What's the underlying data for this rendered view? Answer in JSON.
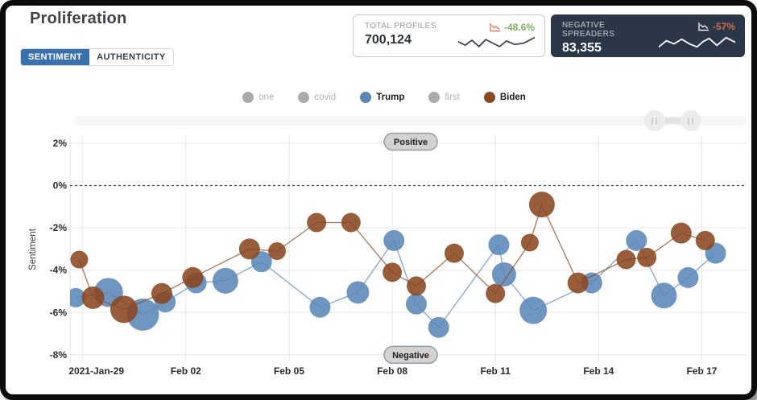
{
  "header": {
    "title": "Proliferation",
    "tabs": [
      {
        "label": "SENTIMENT",
        "active": true
      },
      {
        "label": "AUTHENTICITY",
        "active": false
      }
    ]
  },
  "stat_cards": [
    {
      "label": "TOTAL PROFILES",
      "value": "700,124",
      "change": "-48.6%",
      "change_color": "#7db360",
      "icon": "trend-down-icon",
      "icon_color": "#e07a5e",
      "theme": "light",
      "sparkline_color": "#3d4557",
      "sparkline": [
        [
          0,
          10
        ],
        [
          9,
          15
        ],
        [
          18,
          8
        ],
        [
          27,
          17
        ],
        [
          36,
          7
        ],
        [
          45,
          12
        ],
        [
          54,
          17
        ],
        [
          63,
          9
        ],
        [
          74,
          14
        ],
        [
          86,
          12
        ],
        [
          100,
          4
        ]
      ]
    },
    {
      "label": "NEGATIVE SPREADERS",
      "value": "83,355",
      "change": "-57%",
      "change_color": "#cf6f52",
      "icon": "trend-down-icon",
      "icon_color": "#e8eaee",
      "theme": "dark",
      "sparkline_color": "#f2f4f7",
      "sparkline": [
        [
          0,
          17
        ],
        [
          10,
          9
        ],
        [
          20,
          13
        ],
        [
          30,
          7
        ],
        [
          40,
          13
        ],
        [
          50,
          17
        ],
        [
          58,
          10
        ],
        [
          66,
          6
        ],
        [
          76,
          15
        ],
        [
          88,
          5
        ],
        [
          100,
          11
        ]
      ]
    }
  ],
  "legend": {
    "items": [
      {
        "label": "one",
        "color": "#ababab",
        "active": false
      },
      {
        "label": "covid",
        "color": "#ababab",
        "active": false
      },
      {
        "label": "Trump",
        "color": "#5b87b7",
        "active": true
      },
      {
        "label": "first",
        "color": "#ababab",
        "active": false
      },
      {
        "label": "Biden",
        "color": "#8a4720",
        "active": true
      }
    ]
  },
  "range_slider": {
    "handles": [
      0.863,
      0.917
    ]
  },
  "chart_data": {
    "type": "line",
    "marker": "bubble",
    "title": "",
    "xlabel": "",
    "ylabel": "Sentiment",
    "xlim": [
      0.75,
      20.3
    ],
    "ylim": [
      -8.75,
      2.4
    ],
    "grid": true,
    "zero_line_dashed": true,
    "y_ticks": [
      {
        "value": 2,
        "label": "2%"
      },
      {
        "value": 0,
        "label": "0%"
      },
      {
        "value": -2,
        "label": "-2%"
      },
      {
        "value": -4,
        "label": "-4%"
      },
      {
        "value": -6,
        "label": "-6%"
      },
      {
        "value": -8,
        "label": "-8%"
      }
    ],
    "x_ticks": [
      {
        "value": 1,
        "label": "2021-Jan-29"
      },
      {
        "value": 4,
        "label": "Feb 02"
      },
      {
        "value": 7,
        "label": "Feb 05"
      },
      {
        "value": 10,
        "label": "Feb 08"
      },
      {
        "value": 13,
        "label": "Feb 11"
      },
      {
        "value": 16,
        "label": "Feb 14"
      },
      {
        "value": 19,
        "label": "Feb 17"
      }
    ],
    "annotations": [
      {
        "label": "Positive",
        "y": 2.07
      },
      {
        "label": "Negative",
        "y": -8.0
      }
    ],
    "series": [
      {
        "name": "Trump",
        "color": "#5b87b7",
        "points": [
          [
            0.8,
            -5.3,
            12
          ],
          [
            1.75,
            -5.05,
            18
          ],
          [
            2.75,
            -6.1,
            20
          ],
          [
            3.4,
            -5.5,
            13
          ],
          [
            4.3,
            -4.6,
            13
          ],
          [
            5.15,
            -4.5,
            16
          ],
          [
            6.2,
            -3.6,
            13
          ],
          [
            7.9,
            -5.75,
            13
          ],
          [
            9.0,
            -5.05,
            14
          ],
          [
            10.05,
            -2.6,
            13
          ],
          [
            10.7,
            -5.6,
            13
          ],
          [
            11.35,
            -6.7,
            13
          ],
          [
            13.1,
            -2.8,
            13
          ],
          [
            13.25,
            -4.2,
            15
          ],
          [
            14.1,
            -5.9,
            17
          ],
          [
            15.8,
            -4.6,
            13
          ],
          [
            17.1,
            -2.6,
            13
          ],
          [
            17.9,
            -5.2,
            16
          ],
          [
            18.6,
            -4.35,
            13
          ],
          [
            19.4,
            -3.2,
            13
          ]
        ]
      },
      {
        "name": "Biden",
        "color": "#8a4720",
        "points": [
          [
            0.9,
            -3.5,
            11
          ],
          [
            1.3,
            -5.3,
            14
          ],
          [
            2.2,
            -5.85,
            17
          ],
          [
            3.3,
            -5.1,
            13
          ],
          [
            4.2,
            -4.35,
            13
          ],
          [
            5.85,
            -3.0,
            13
          ],
          [
            6.65,
            -3.1,
            11
          ],
          [
            7.8,
            -1.75,
            12
          ],
          [
            8.8,
            -1.75,
            12
          ],
          [
            10.0,
            -4.1,
            12
          ],
          [
            10.7,
            -4.75,
            12
          ],
          [
            11.8,
            -3.2,
            12
          ],
          [
            13.0,
            -5.1,
            12
          ],
          [
            14.0,
            -2.7,
            11
          ],
          [
            14.35,
            -0.9,
            16
          ],
          [
            15.4,
            -4.6,
            13
          ],
          [
            16.8,
            -3.5,
            12
          ],
          [
            17.4,
            -3.4,
            12
          ],
          [
            18.4,
            -2.25,
            13
          ],
          [
            19.1,
            -2.6,
            12
          ]
        ]
      }
    ]
  }
}
